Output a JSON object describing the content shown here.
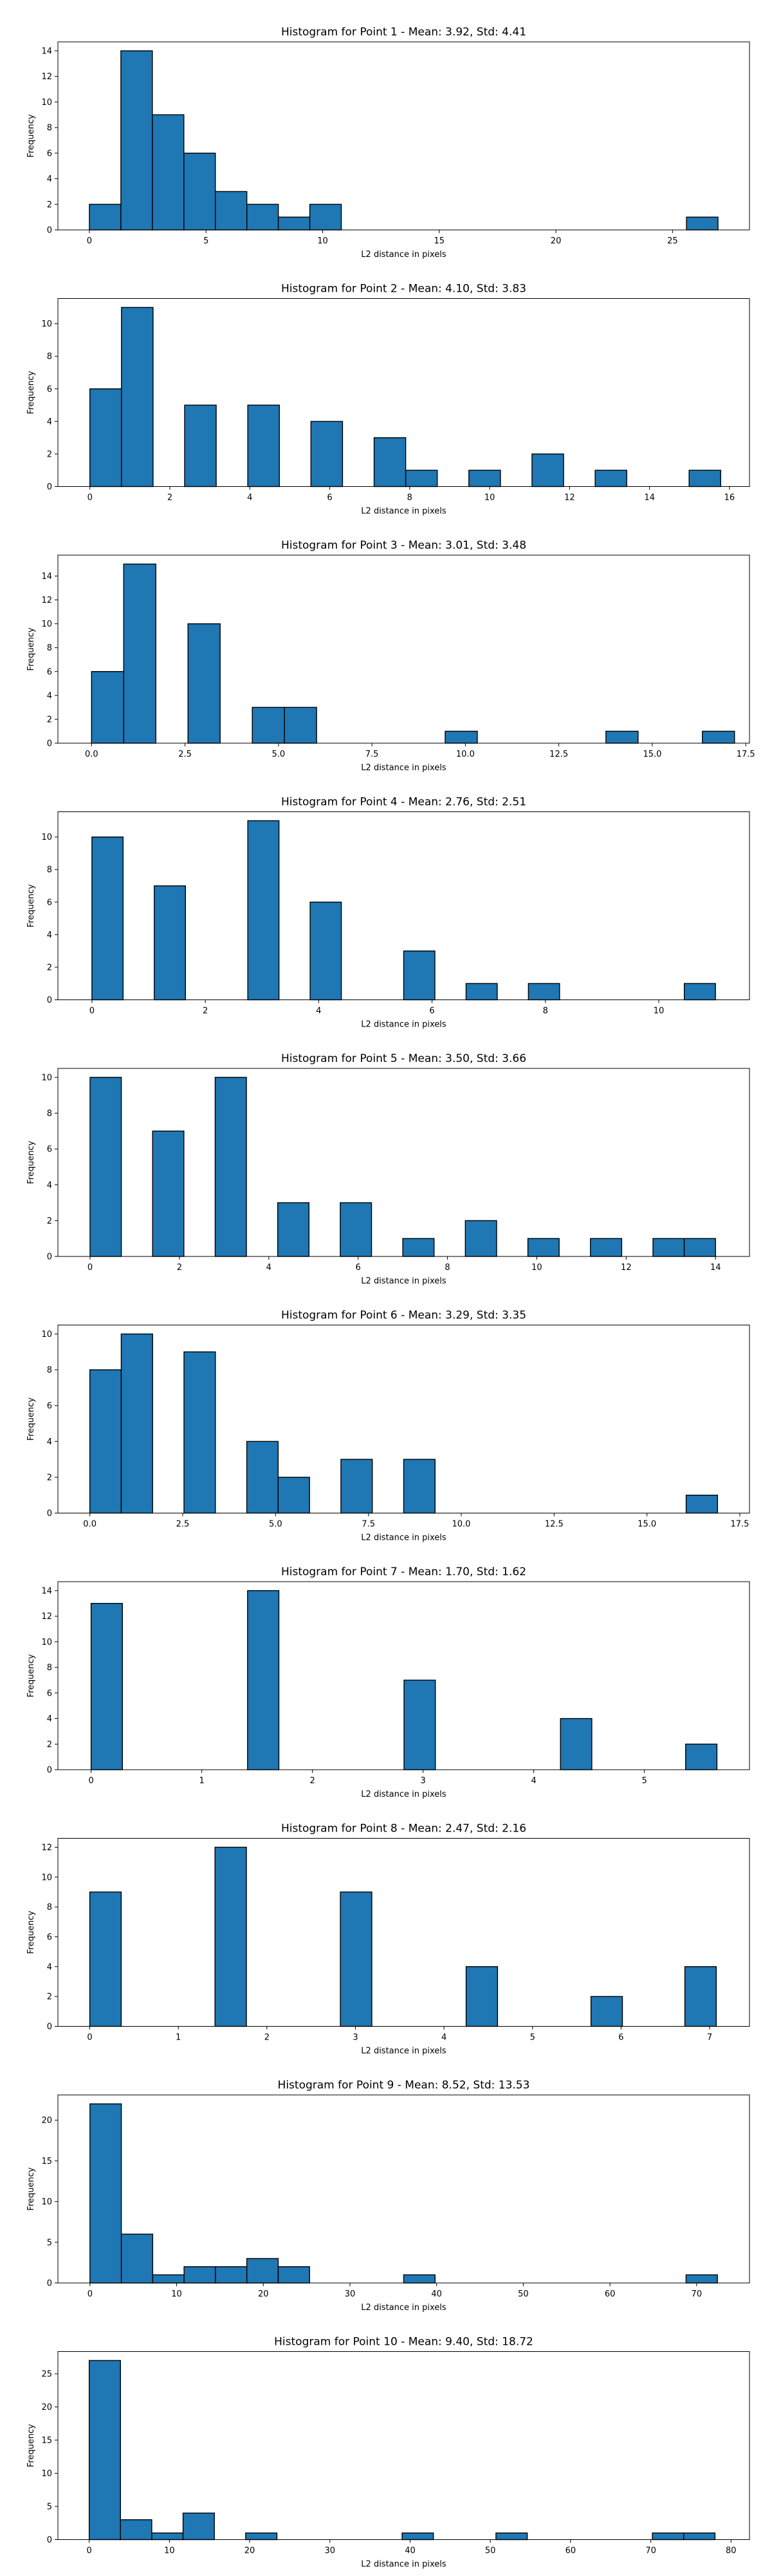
{
  "figure": {
    "background": "#ffffff",
    "bar_color": "#1f77b4",
    "edge_color": "#000000"
  },
  "chart_data": [
    {
      "type": "bar",
      "title": "Histogram for Point 1 - Mean: 3.92, Std: 4.41",
      "xlabel": "L2 distance in pixels",
      "ylabel": "Frequency",
      "xlim": [
        -1.35,
        28.3
      ],
      "ylim": [
        0,
        14.7
      ],
      "xticks": [
        0,
        5,
        10,
        15,
        20,
        25
      ],
      "xtick_labels": [
        "0",
        "5",
        "10",
        "15",
        "20",
        "25"
      ],
      "yticks": [
        0,
        2,
        4,
        6,
        8,
        10,
        12,
        14
      ],
      "bin_width": 1.35,
      "bins": [
        {
          "x0": 0.0,
          "value": 2
        },
        {
          "x0": 1.35,
          "value": 14
        },
        {
          "x0": 2.7,
          "value": 9
        },
        {
          "x0": 4.05,
          "value": 6
        },
        {
          "x0": 5.4,
          "value": 3
        },
        {
          "x0": 6.75,
          "value": 2
        },
        {
          "x0": 8.1,
          "value": 1
        },
        {
          "x0": 9.45,
          "value": 2
        },
        {
          "x0": 25.6,
          "value": 1
        }
      ]
    },
    {
      "type": "bar",
      "title": "Histogram for Point 2 - Mean: 4.10, Std: 3.83",
      "xlabel": "L2 distance in pixels",
      "ylabel": "Frequency",
      "xlim": [
        -0.8,
        16.5
      ],
      "ylim": [
        0,
        11.55
      ],
      "xticks": [
        0,
        2,
        4,
        6,
        8,
        10,
        12,
        14,
        16
      ],
      "xtick_labels": [
        "0",
        "2",
        "4",
        "6",
        "8",
        "10",
        "12",
        "14",
        "16"
      ],
      "yticks": [
        0,
        2,
        4,
        6,
        8,
        10
      ],
      "bin_width": 0.79,
      "bins": [
        {
          "x0": 0.0,
          "value": 6
        },
        {
          "x0": 0.79,
          "value": 11
        },
        {
          "x0": 2.37,
          "value": 5
        },
        {
          "x0": 3.95,
          "value": 5
        },
        {
          "x0": 5.53,
          "value": 4
        },
        {
          "x0": 7.11,
          "value": 3
        },
        {
          "x0": 7.9,
          "value": 1
        },
        {
          "x0": 9.48,
          "value": 1
        },
        {
          "x0": 11.06,
          "value": 2
        },
        {
          "x0": 12.64,
          "value": 1
        },
        {
          "x0": 14.99,
          "value": 1
        }
      ]
    },
    {
      "type": "bar",
      "title": "Histogram for Point 3 - Mean: 3.01, Std: 3.48",
      "xlabel": "L2 distance in pixels",
      "ylabel": "Frequency",
      "xlim": [
        -0.9,
        17.6
      ],
      "ylim": [
        0,
        15.75
      ],
      "xticks": [
        0,
        2.5,
        5,
        7.5,
        10,
        12.5,
        15,
        17.5
      ],
      "xtick_labels": [
        "0.0",
        "2.5",
        "5.0",
        "7.5",
        "10.0",
        "12.5",
        "15.0",
        "17.5"
      ],
      "yticks": [
        0,
        2,
        4,
        6,
        8,
        10,
        12,
        14
      ],
      "bin_width": 0.86,
      "bins": [
        {
          "x0": 0.0,
          "value": 6
        },
        {
          "x0": 0.86,
          "value": 15
        },
        {
          "x0": 2.58,
          "value": 10
        },
        {
          "x0": 4.3,
          "value": 3
        },
        {
          "x0": 5.16,
          "value": 3
        },
        {
          "x0": 9.46,
          "value": 1
        },
        {
          "x0": 13.76,
          "value": 1
        },
        {
          "x0": 16.34,
          "value": 1
        }
      ]
    },
    {
      "type": "bar",
      "title": "Histogram for Point 4 - Mean: 2.76, Std: 2.51",
      "xlabel": "L2 distance in pixels",
      "ylabel": "Frequency",
      "xlim": [
        -0.6,
        11.6
      ],
      "ylim": [
        0,
        11.55
      ],
      "xticks": [
        0,
        2,
        4,
        6,
        8,
        10
      ],
      "xtick_labels": [
        "0",
        "2",
        "4",
        "6",
        "8",
        "10"
      ],
      "yticks": [
        0,
        2,
        4,
        6,
        8,
        10
      ],
      "bin_width": 0.55,
      "bins": [
        {
          "x0": 0.0,
          "value": 10
        },
        {
          "x0": 1.1,
          "value": 7
        },
        {
          "x0": 2.75,
          "value": 11
        },
        {
          "x0": 3.85,
          "value": 6
        },
        {
          "x0": 5.5,
          "value": 3
        },
        {
          "x0": 6.6,
          "value": 1
        },
        {
          "x0": 7.7,
          "value": 1
        },
        {
          "x0": 10.45,
          "value": 1
        }
      ]
    },
    {
      "type": "bar",
      "title": "Histogram for Point 5 - Mean: 3.50, Std: 3.66",
      "xlabel": "L2 distance in pixels",
      "ylabel": "Frequency",
      "xlim": [
        -0.72,
        14.76
      ],
      "ylim": [
        0,
        10.5
      ],
      "xticks": [
        0,
        2,
        4,
        6,
        8,
        10,
        12,
        14
      ],
      "xtick_labels": [
        "0",
        "2",
        "4",
        "6",
        "8",
        "10",
        "12",
        "14"
      ],
      "yticks": [
        0,
        2,
        4,
        6,
        8,
        10
      ],
      "bin_width": 0.7,
      "bins": [
        {
          "x0": 0.0,
          "value": 10
        },
        {
          "x0": 1.4,
          "value": 7
        },
        {
          "x0": 2.8,
          "value": 10
        },
        {
          "x0": 4.2,
          "value": 3
        },
        {
          "x0": 5.6,
          "value": 3
        },
        {
          "x0": 7.0,
          "value": 1
        },
        {
          "x0": 8.4,
          "value": 2
        },
        {
          "x0": 9.8,
          "value": 1
        },
        {
          "x0": 11.2,
          "value": 1
        },
        {
          "x0": 12.6,
          "value": 1
        },
        {
          "x0": 13.3,
          "value": 1
        }
      ]
    },
    {
      "type": "bar",
      "title": "Histogram for Point 6 - Mean: 3.29, Std: 3.35",
      "xlabel": "L2 distance in pixels",
      "ylabel": "Frequency",
      "xlim": [
        -0.86,
        17.76
      ],
      "ylim": [
        0,
        10.5
      ],
      "xticks": [
        0,
        2.5,
        5,
        7.5,
        10,
        12.5,
        15,
        17.5
      ],
      "xtick_labels": [
        "0.0",
        "2.5",
        "5.0",
        "7.5",
        "10.0",
        "12.5",
        "15.0",
        "17.5"
      ],
      "yticks": [
        0,
        2,
        4,
        6,
        8,
        10
      ],
      "bin_width": 0.845,
      "bins": [
        {
          "x0": 0.0,
          "value": 8
        },
        {
          "x0": 0.845,
          "value": 10
        },
        {
          "x0": 2.535,
          "value": 9
        },
        {
          "x0": 4.225,
          "value": 4
        },
        {
          "x0": 5.07,
          "value": 2
        },
        {
          "x0": 6.76,
          "value": 3
        },
        {
          "x0": 8.45,
          "value": 3
        },
        {
          "x0": 16.055,
          "value": 1
        }
      ]
    },
    {
      "type": "bar",
      "title": "Histogram for Point 7 - Mean: 1.70, Std: 1.62",
      "xlabel": "L2 distance in pixels",
      "ylabel": "Frequency",
      "xlim": [
        -0.3,
        5.95
      ],
      "ylim": [
        0,
        14.7
      ],
      "xticks": [
        0,
        1,
        2,
        3,
        4,
        5
      ],
      "xtick_labels": [
        "0",
        "1",
        "2",
        "3",
        "4",
        "5"
      ],
      "yticks": [
        0,
        2,
        4,
        6,
        8,
        10,
        12,
        14
      ],
      "bin_width": 0.283,
      "bins": [
        {
          "x0": 0.0,
          "value": 13
        },
        {
          "x0": 1.414,
          "value": 14
        },
        {
          "x0": 2.828,
          "value": 7
        },
        {
          "x0": 4.242,
          "value": 4
        },
        {
          "x0": 5.373,
          "value": 2
        }
      ]
    },
    {
      "type": "bar",
      "title": "Histogram for Point 8 - Mean: 2.47, Std: 2.16",
      "xlabel": "L2 distance in pixels",
      "ylabel": "Frequency",
      "xlim": [
        -0.36,
        7.45
      ],
      "ylim": [
        0,
        12.6
      ],
      "xticks": [
        0,
        1,
        2,
        3,
        4,
        5,
        6,
        7
      ],
      "xtick_labels": [
        "0",
        "1",
        "2",
        "3",
        "4",
        "5",
        "6",
        "7"
      ],
      "yticks": [
        0,
        2,
        4,
        6,
        8,
        10,
        12
      ],
      "bin_width": 0.355,
      "bins": [
        {
          "x0": 0.0,
          "value": 9
        },
        {
          "x0": 1.414,
          "value": 12
        },
        {
          "x0": 2.83,
          "value": 9
        },
        {
          "x0": 4.25,
          "value": 4
        },
        {
          "x0": 5.66,
          "value": 2
        },
        {
          "x0": 6.72,
          "value": 4
        }
      ]
    },
    {
      "type": "bar",
      "title": "Histogram for Point 9 - Mean: 8.52, Std: 13.53",
      "xlabel": "L2 distance in pixels",
      "ylabel": "Frequency",
      "xlim": [
        -3.7,
        76.1
      ],
      "ylim": [
        0,
        23.1
      ],
      "xticks": [
        0,
        10,
        20,
        30,
        40,
        50,
        60,
        70
      ],
      "xtick_labels": [
        "0",
        "10",
        "20",
        "30",
        "40",
        "50",
        "60",
        "70"
      ],
      "yticks": [
        0,
        5,
        10,
        15,
        20
      ],
      "bin_width": 3.62,
      "bins": [
        {
          "x0": 0.0,
          "value": 22
        },
        {
          "x0": 3.62,
          "value": 6
        },
        {
          "x0": 7.24,
          "value": 1
        },
        {
          "x0": 10.86,
          "value": 2
        },
        {
          "x0": 14.48,
          "value": 2
        },
        {
          "x0": 18.1,
          "value": 3
        },
        {
          "x0": 21.72,
          "value": 2
        },
        {
          "x0": 36.2,
          "value": 1
        },
        {
          "x0": 68.78,
          "value": 1
        }
      ]
    },
    {
      "type": "bar",
      "title": "Histogram for Point 10 - Mean: 9.40, Std: 18.72",
      "xlabel": "L2 distance in pixels",
      "ylabel": "Frequency",
      "xlim": [
        -3.9,
        82.3
      ],
      "ylim": [
        0,
        28.35
      ],
      "xticks": [
        0,
        10,
        20,
        30,
        40,
        50,
        60,
        70,
        80
      ],
      "xtick_labels": [
        "0",
        "10",
        "20",
        "30",
        "40",
        "50",
        "60",
        "70",
        "80"
      ],
      "yticks": [
        0,
        5,
        10,
        15,
        20,
        25
      ],
      "bin_width": 3.9,
      "bins": [
        {
          "x0": 0.0,
          "value": 27
        },
        {
          "x0": 3.9,
          "value": 3
        },
        {
          "x0": 7.8,
          "value": 1
        },
        {
          "x0": 11.7,
          "value": 4
        },
        {
          "x0": 19.5,
          "value": 1
        },
        {
          "x0": 39.0,
          "value": 1
        },
        {
          "x0": 50.7,
          "value": 1
        },
        {
          "x0": 70.2,
          "value": 1
        },
        {
          "x0": 74.1,
          "value": 1
        }
      ]
    }
  ]
}
